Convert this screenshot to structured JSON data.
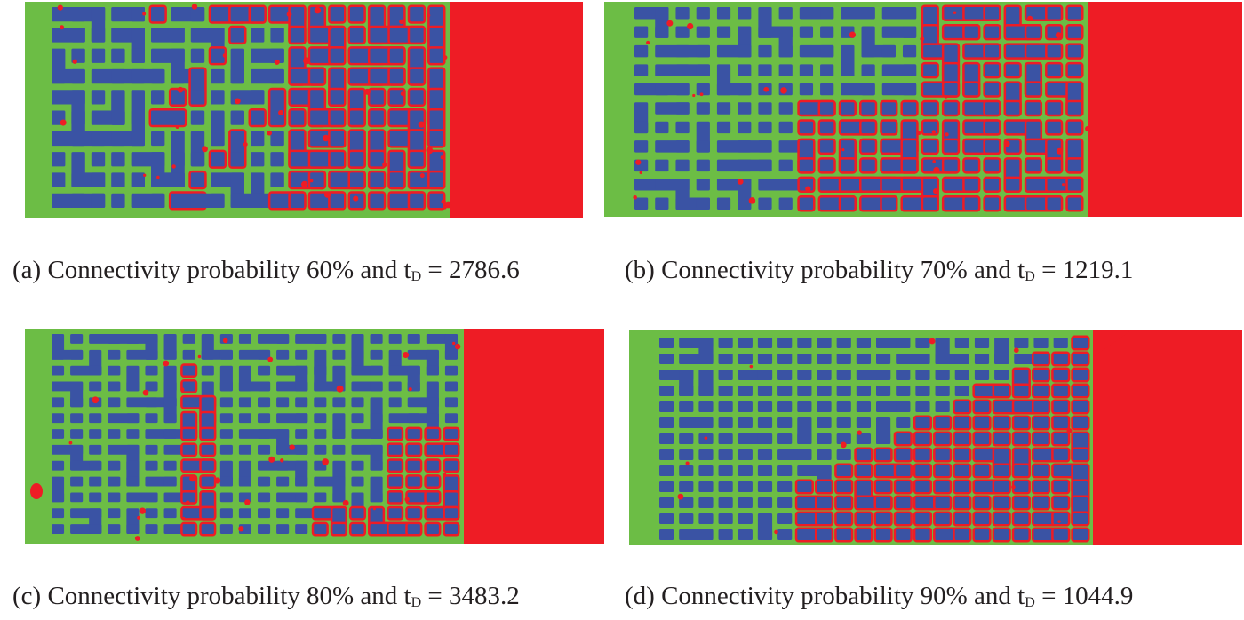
{
  "colors": {
    "background_phase": "#6cbd45",
    "injected_phase": "#ee1c25",
    "solid_blocks": "#3a53a4",
    "caption_text": "#231f20"
  },
  "panels": [
    {
      "label": "(a)",
      "text": "Connectivity probability 60% and t",
      "subscript": "D",
      "value_text": " = 2786.6",
      "connectivity_percent": 60,
      "tD": 2786.6
    },
    {
      "label": "(b)",
      "text": "Connectivity probability 70% and t",
      "subscript": "D",
      "value_text": " = 1219.1",
      "connectivity_percent": 70,
      "tD": 1219.1
    },
    {
      "label": "(c)",
      "text": "Connectivity probability 80% and t",
      "subscript": "D",
      "value_text": " = 3483.2",
      "connectivity_percent": 80,
      "tD": 3483.2
    },
    {
      "label": "(d)",
      "text": "Connectivity probability 90% and t",
      "subscript": "D",
      "value_text": " = 1044.9",
      "connectivity_percent": 90,
      "tD": 1044.9
    }
  ]
}
